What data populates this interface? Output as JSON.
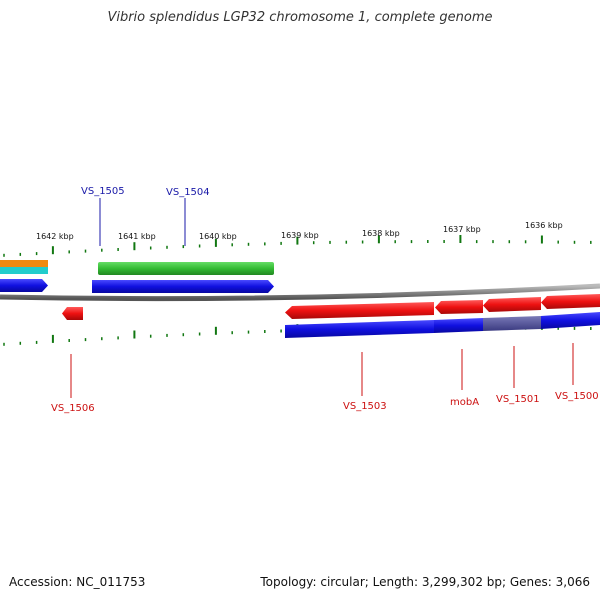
{
  "title": "Vibrio splendidus LGP32 chromosome 1, complete genome",
  "footer": {
    "accession": "Accession: NC_011753",
    "summary": "Topology: circular; Length: 3,299,302 bp; Genes: 3,066"
  },
  "scale": {
    "ticks": [
      "1642 kbp",
      "1641 kbp",
      "1640 kbp",
      "1639 kbp",
      "1638 kbp",
      "1637 kbp",
      "1636 kbp"
    ]
  },
  "genes": [
    {
      "label": "VS_1505",
      "strand": "top",
      "color": "#1a1aa8"
    },
    {
      "label": "VS_1504",
      "strand": "top",
      "color": "#1a1aa8"
    },
    {
      "label": "VS_1506",
      "strand": "bottom",
      "color": "#cc1111"
    },
    {
      "label": "VS_1503",
      "strand": "bottom",
      "color": "#cc1111"
    },
    {
      "label": "mobA",
      "strand": "bottom",
      "color": "#cc1111"
    },
    {
      "label": "VS_1501",
      "strand": "bottom",
      "color": "#cc1111"
    },
    {
      "label": "VS_1500",
      "strand": "bottom",
      "color": "#cc1111"
    }
  ],
  "colors": {
    "forward_cds": "#1010e0",
    "reverse_cds": "#ee1111",
    "rna_gene": "#33bb33",
    "orange_feature": "#f08a10",
    "cyan_feature": "#22cccc",
    "backbone": "#888888",
    "tick": "#117711"
  }
}
